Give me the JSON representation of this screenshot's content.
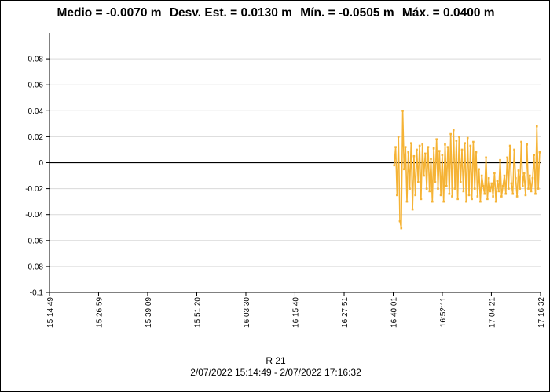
{
  "title_parts": {
    "mean": "Medio = -0.0070 m",
    "stdev": "Desv. Est. = 0.0130 m",
    "min": "Mín. = -0.0505 m",
    "max": "Máx. = 0.0400 m"
  },
  "footer": {
    "xlabel": "R 21",
    "date_range": "2/07/2022 15:14:49 - 2/07/2022 17:16:32"
  },
  "colors": {
    "series": "#f5b335",
    "grid": "#d9d9d9",
    "zero_line": "#000000"
  },
  "chart_data": {
    "type": "line",
    "title": "Medio = -0.0070 m  Desv. Est. = 0.0130 m  Mín. = -0.0505 m  Máx. = 0.0400 m",
    "xlabel": "R 21",
    "ylabel": "",
    "ylim": [
      -0.1,
      0.1
    ],
    "xlim": [
      "15:14:49",
      "17:16:32"
    ],
    "grid": true,
    "legend": "none",
    "y_ticks": [
      "0.08",
      "0.06",
      "0.04",
      "0.02",
      "0",
      "-0.02",
      "-0.04",
      "-0.06",
      "-0.08",
      "-0.1"
    ],
    "x_ticks": [
      "15:14:49",
      "15:26:59",
      "15:39:09",
      "15:51:20",
      "16:03:30",
      "16:15:40",
      "16:27:51",
      "16:40:01",
      "16:52:11",
      "17:04:21",
      "17:16:32"
    ],
    "series": [
      {
        "x": [
          "16:40:16",
          "16:40:37",
          "16:40:58",
          "16:41:19",
          "16:41:40",
          "16:42:01",
          "16:42:22",
          "16:42:43",
          "16:43:04",
          "16:43:25",
          "16:43:46",
          "16:44:07",
          "16:44:28",
          "16:44:49",
          "16:45:10",
          "16:45:31",
          "16:45:52",
          "16:46:13",
          "16:46:34",
          "16:46:55",
          "16:47:16",
          "16:47:37",
          "16:47:58",
          "16:48:19",
          "16:48:40",
          "16:49:01",
          "16:49:22",
          "16:49:43",
          "16:50:04",
          "16:50:25",
          "16:50:46",
          "16:51:07",
          "16:51:28",
          "16:51:49",
          "16:52:10",
          "16:52:31",
          "16:52:52",
          "16:53:13",
          "16:53:34",
          "16:53:55",
          "16:54:16",
          "16:54:37",
          "16:54:58",
          "16:55:19",
          "16:55:40",
          "16:56:01",
          "16:56:22",
          "16:56:43",
          "16:57:04",
          "16:57:25",
          "16:57:46",
          "16:58:07",
          "16:58:28",
          "16:58:49",
          "16:59:10",
          "16:59:31",
          "16:59:52",
          "17:00:13",
          "17:00:34",
          "17:00:55",
          "17:01:16",
          "17:01:37",
          "17:01:58",
          "17:02:19",
          "17:02:40",
          "17:03:01",
          "17:03:22",
          "17:03:43",
          "17:04:04",
          "17:04:25",
          "17:04:46",
          "17:05:07",
          "17:05:28",
          "17:05:49",
          "17:06:10",
          "17:06:31",
          "17:06:52",
          "17:07:13",
          "17:07:34",
          "17:07:55",
          "17:08:16",
          "17:08:37",
          "17:08:58",
          "17:09:19",
          "17:09:40",
          "17:10:01",
          "17:10:22",
          "17:10:43",
          "17:11:04",
          "17:11:25",
          "17:11:46",
          "17:12:07",
          "17:12:28",
          "17:12:49",
          "17:13:10",
          "17:13:31",
          "17:13:52",
          "17:14:13",
          "17:14:34",
          "17:14:55",
          "17:15:16",
          "17:15:37",
          "17:15:58",
          "17:16:19"
        ],
        "values": [
          -0.002,
          0.012,
          -0.025,
          0.02,
          -0.045,
          -0.0505,
          0.04,
          -0.005,
          0.012,
          -0.03,
          0.008,
          -0.02,
          0.015,
          -0.036,
          0.005,
          -0.025,
          0.01,
          -0.015,
          0.013,
          -0.028,
          0.014,
          -0.01,
          0.007,
          -0.02,
          0.012,
          -0.022,
          0.003,
          -0.03,
          0.011,
          -0.015,
          0.018,
          -0.02,
          0.009,
          -0.025,
          0.006,
          -0.03,
          0.014,
          -0.018,
          0.012,
          -0.024,
          0.022,
          -0.026,
          0.025,
          -0.02,
          0.017,
          -0.028,
          0.02,
          -0.015,
          0.01,
          -0.022,
          0.015,
          -0.03,
          0.019,
          -0.025,
          0.013,
          -0.028,
          0.016,
          -0.02,
          0.008,
          -0.026,
          -0.005,
          -0.03,
          -0.01,
          -0.018,
          -0.024,
          0.004,
          -0.028,
          -0.012,
          -0.022,
          -0.016,
          -0.026,
          -0.008,
          -0.03,
          -0.014,
          -0.022,
          0.002,
          -0.026,
          -0.018,
          -0.01,
          -0.024,
          0.004,
          -0.02,
          0.013,
          -0.016,
          -0.024,
          0.01,
          -0.012,
          -0.026,
          -0.006,
          -0.02,
          0.016,
          -0.018,
          -0.008,
          -0.025,
          0.014,
          -0.02,
          -0.01,
          -0.022,
          -0.012,
          0.006,
          -0.024,
          0.028,
          -0.02,
          0.008
        ]
      }
    ]
  }
}
